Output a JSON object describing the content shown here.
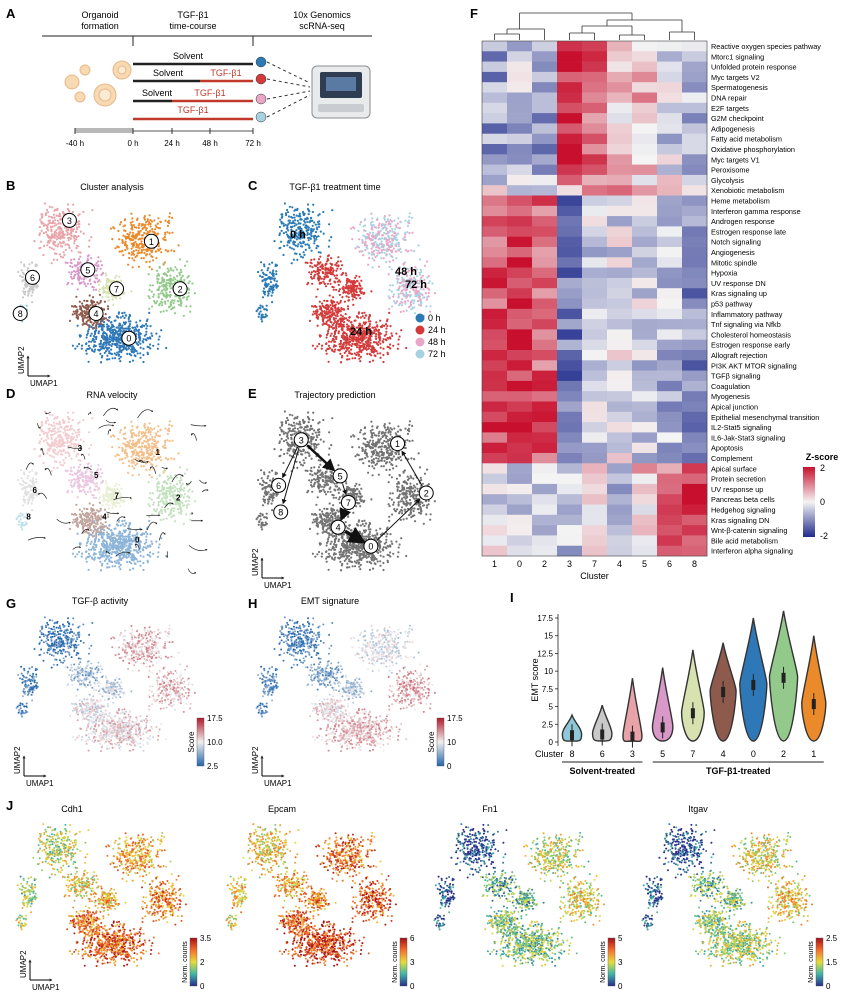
{
  "panels": {
    "A": "A",
    "B": "B",
    "C": "C",
    "D": "D",
    "E": "E",
    "F": "F",
    "G": "G",
    "H": "H",
    "I": "I",
    "J": "J"
  },
  "panelA": {
    "phases": [
      "Organoid formation",
      "TGF-β1 time-course",
      "10x Genomics scRNA-seq"
    ],
    "phase1_line1": "Organoid",
    "phase1_line2": "formation",
    "phase2_line1": "TGF-β1",
    "phase2_line2": "time-course",
    "phase3_line1": "10x Genomics",
    "phase3_line2": "scRNA-seq",
    "rows": [
      {
        "solvent": "Solvent",
        "tgf": ""
      },
      {
        "solvent": "Solvent",
        "tgf": "TGF-β1"
      },
      {
        "solvent": "Solvent",
        "tgf": "TGF-β1"
      },
      {
        "solvent": "",
        "tgf": "TGF-β1"
      }
    ],
    "timeline": [
      "-40 h",
      "0 h",
      "24 h",
      "48 h",
      "72 h"
    ],
    "dot_colors": [
      "#2a7bb5",
      "#d43a3a",
      "#eaa6c6",
      "#a7d2e3"
    ]
  },
  "panelB": {
    "title": "Cluster analysis",
    "clusters": [
      "0",
      "1",
      "2",
      "3",
      "4",
      "5",
      "6",
      "7",
      "8"
    ]
  },
  "panelC": {
    "title": "TGF-β1 treatment time",
    "labels": {
      "t0": "0 h",
      "t24": "24 h",
      "t48": "48 h",
      "t72": "72 h"
    },
    "legend": [
      "0 h",
      "24 h",
      "48 h",
      "72 h"
    ],
    "colors": [
      "#2a7bb5",
      "#d43a3a",
      "#eaa6c6",
      "#a7d2e3"
    ]
  },
  "panelD": {
    "title": "RNA velocity"
  },
  "panelE": {
    "title": "Trajectory prediction"
  },
  "panelG": {
    "title": "TGF-β activity",
    "scale": [
      "17.5",
      "10.0",
      "2.5"
    ],
    "scale_label": "Score"
  },
  "panelH": {
    "title": "EMT signature",
    "scale": [
      "17.5",
      "10",
      "0"
    ],
    "scale_label": "Score"
  },
  "axes": {
    "umap1": "UMAP1",
    "umap2": "UMAP2"
  },
  "panelF": {
    "columns": [
      "1",
      "0",
      "2",
      "3",
      "7",
      "4",
      "5",
      "6",
      "8"
    ],
    "xlabel": "Cluster",
    "legend_title": "Z-score",
    "legend_ticks": [
      "2",
      "0",
      "-2"
    ],
    "rows": [
      "Reactive oxygen species pathway",
      "Mtorc1 signaling",
      "Unfolded protein response",
      "Myc targets V2",
      "Spermatogenesis",
      "DNA repair",
      "E2F targets",
      "G2M checkpoint",
      "Adipogenesis",
      "Fatty acid metabolism",
      "Oxidative phosphorylation",
      "Myc targets V1",
      "Peroxisome",
      "Glycolysis",
      "Xenobiotic metabolism",
      "Heme metabolism",
      "Interferon gamma response",
      "Androgen response",
      "Estrogen response late",
      "Notch signaling",
      "Angiogenesis",
      "Mitotic spindle",
      "Hypoxia",
      "UV response DN",
      "Kras signaling up",
      "p53 pathway",
      "Inflammatory pathway",
      "Tnf signaling via Nfkb",
      "Cholesterol homeostasis",
      "Estrogen response early",
      "Allograft rejection",
      "PI3K AKT MTOR signaling",
      "TGFβ signaling",
      "Coagulation",
      "Myogenesis",
      "Apical junction",
      "Epithelial mesenchymal transition",
      "IL2-Stat5 signaling",
      "IL6-Jak-Stat3 signaling",
      "Apoptosis",
      "Complement",
      "Apical surface",
      "Protein secretion",
      "UV response up",
      "Pancreas beta cells",
      "Hedgehog signaling",
      "Kras signaling DN",
      "Wnt-β-catenin signaling",
      "Bile acid metabolism",
      "Interferon alpha signaling"
    ]
  },
  "panelI": {
    "ylabel": "EMT score",
    "yticks": [
      "0",
      "2.5",
      "5",
      "7.5",
      "10",
      "12.5",
      "15",
      "17.5"
    ],
    "cluster_label": "Cluster",
    "clusters": [
      "8",
      "6",
      "3",
      "5",
      "7",
      "4",
      "0",
      "2",
      "1"
    ],
    "group1": "Solvent-treated",
    "group2": "TGF-β1-treated"
  },
  "panelJ": {
    "genes": [
      {
        "name": "Cdh1",
        "ticks": [
          "3.5",
          "2",
          "0"
        ]
      },
      {
        "name": "Epcam",
        "ticks": [
          "6",
          "3",
          "0"
        ]
      },
      {
        "name": "Fn1",
        "ticks": [
          "5",
          "3",
          "0"
        ]
      },
      {
        "name": "Itgav",
        "ticks": [
          "2.5",
          "1.5",
          "0"
        ]
      }
    ],
    "scale_label": "Norm. counts"
  },
  "chart_data": [
    {
      "type": "heatmap",
      "columns": [
        "1",
        "0",
        "2",
        "3",
        "7",
        "4",
        "5",
        "6",
        "8"
      ],
      "xlabel": "Cluster",
      "legend": {
        "title": "Z-score",
        "range": [
          -2,
          2
        ]
      },
      "row_groups": [
        {
          "rows": "Reactive oxygen species pathway – Peroxisome",
          "pattern": {
            "3": 2,
            "7": 1.5,
            "4": 0.8,
            "5": 0.6,
            "1": -1,
            "0": -0.6,
            "2": -0.8
          }
        },
        {
          "rows": "Heme metabolism – Complement",
          "pattern": {
            "1": 1.6,
            "0": 1.8,
            "2": 1.5,
            "3": -1.4,
            "7": -0.5,
            "4": -0.3
          }
        },
        {
          "rows": "Apical surface – Interferon alpha signaling",
          "pattern": {
            "6": 1.2,
            "8": 1.8,
            "5": 0.5,
            "4": -0.8
          }
        }
      ]
    },
    {
      "type": "violin",
      "ylabel": "EMT score",
      "ylim": [
        0,
        17.5
      ],
      "categories": [
        "8",
        "6",
        "3",
        "5",
        "7",
        "4",
        "0",
        "2",
        "1"
      ],
      "medians": [
        1.1,
        1.2,
        0.9,
        2.2,
        4.2,
        7.2,
        8.2,
        9.2,
        5.5
      ],
      "maxima": [
        3.8,
        5.2,
        9.0,
        10.5,
        13.0,
        14.0,
        17.5,
        18.5,
        15.0
      ],
      "colors": [
        "#8fc8d9",
        "#c9c9c9",
        "#e8a3a8",
        "#d898c8",
        "#d7e2b0",
        "#8d5a4c",
        "#2f78b8",
        "#93c98b",
        "#ea8a2a"
      ]
    }
  ]
}
